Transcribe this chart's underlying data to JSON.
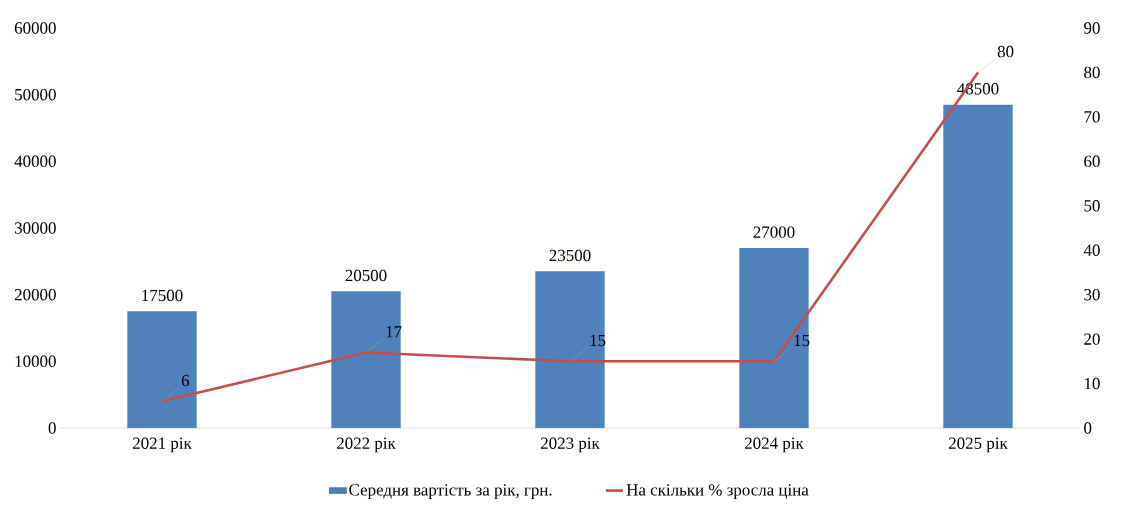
{
  "chart_data": {
    "type": "bar",
    "categories": [
      "2021 рік",
      "2022 рік",
      "2023 рік",
      "2024 рік",
      "2025 рік"
    ],
    "series": [
      {
        "name": "Середня вартість за рік, грн.",
        "color": "#4f81bd",
        "values": [
          17500,
          20500,
          23500,
          27000,
          48500
        ]
      },
      {
        "name": "На скільки % зросла ціна",
        "type": "line",
        "axis": "y2",
        "color": "#c0504d",
        "values": [
          6,
          17,
          15,
          15,
          80
        ]
      }
    ],
    "ylim": [
      0,
      60000
    ],
    "yticks": [
      0,
      10000,
      20000,
      30000,
      40000,
      50000,
      60000
    ],
    "y2lim": [
      0,
      90
    ],
    "y2ticks": [
      0,
      10,
      20,
      30,
      40,
      50,
      60,
      70,
      80,
      90
    ],
    "data_labels": true,
    "grid": false,
    "legend": "bottom",
    "marker": "none",
    "line_style": "solid"
  }
}
